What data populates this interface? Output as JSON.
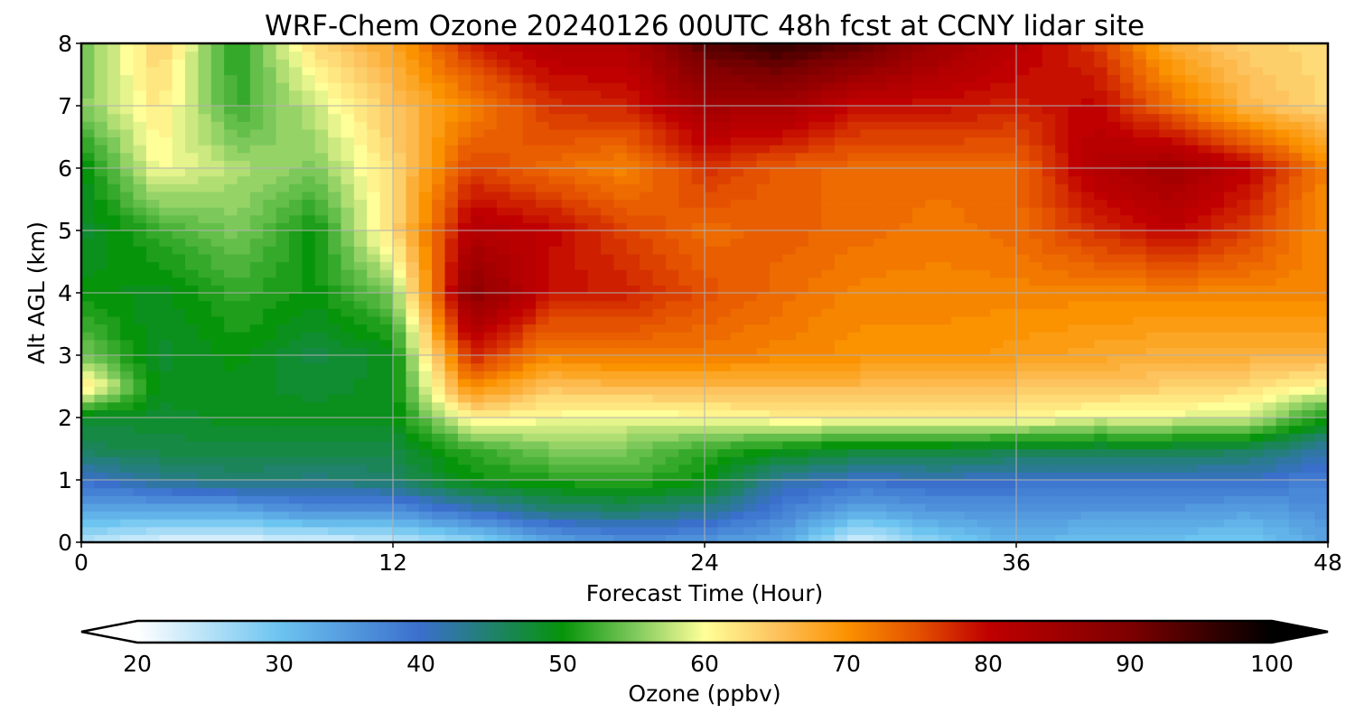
{
  "chart_data": {
    "type": "heatmap",
    "title": "WRF-Chem Ozone  20240126 00UTC 48h fcst at CCNY lidar site",
    "xlabel": "Forecast Time (Hour)",
    "ylabel": "Alt AGL (km)",
    "xlim": [
      0,
      48
    ],
    "ylim": [
      0,
      8
    ],
    "x_ticks": [
      "0",
      "12",
      "24",
      "36",
      "48"
    ],
    "y_ticks": [
      "0",
      "1",
      "2",
      "3",
      "4",
      "5",
      "6",
      "7",
      "8"
    ],
    "grid": true,
    "colorbar": {
      "label": "Ozone  (ppbv)",
      "range": [
        20,
        100
      ],
      "ticks": [
        "20",
        "30",
        "40",
        "50",
        "60",
        "70",
        "80",
        "90",
        "100"
      ],
      "extend": "both",
      "color_stops": [
        {
          "v": 20,
          "c": "#ffffff"
        },
        {
          "v": 30,
          "c": "#6cc4f0"
        },
        {
          "v": 40,
          "c": "#3a6fcc"
        },
        {
          "v": 50,
          "c": "#06940a"
        },
        {
          "v": 55,
          "c": "#7cc85a"
        },
        {
          "v": 60,
          "c": "#ffff99"
        },
        {
          "v": 65,
          "c": "#fdc35e"
        },
        {
          "v": 70,
          "c": "#fb9200"
        },
        {
          "v": 75,
          "c": "#e45100"
        },
        {
          "v": 80,
          "c": "#c00000"
        },
        {
          "v": 90,
          "c": "#7d0000"
        },
        {
          "v": 100,
          "c": "#000000"
        }
      ]
    },
    "x_hours": [
      0,
      3,
      6,
      9,
      12,
      15,
      18,
      21,
      24,
      27,
      30,
      33,
      36,
      39,
      42,
      45,
      48
    ],
    "z_km": [
      0,
      0.5,
      1,
      1.5,
      2,
      2.5,
      3,
      4,
      5,
      6,
      7,
      8
    ],
    "values_ppbv": [
      [
        25,
        22,
        22,
        22,
        24,
        27,
        33,
        36,
        35,
        33,
        22,
        28,
        32,
        30,
        30,
        29,
        34
      ],
      [
        33,
        33,
        33,
        36,
        36,
        40,
        44,
        45,
        43,
        38,
        33,
        35,
        36,
        35,
        35,
        34,
        36
      ],
      [
        40,
        43,
        45,
        44,
        45,
        50,
        51,
        52,
        50,
        42,
        40,
        41,
        40,
        40,
        40,
        40,
        38
      ],
      [
        46,
        47,
        47,
        47,
        47,
        52,
        55,
        55,
        52,
        50,
        48,
        48,
        47,
        47,
        47,
        46,
        42
      ],
      [
        48,
        48,
        49,
        49,
        49,
        61,
        60,
        59,
        60,
        61,
        61,
        61,
        61,
        59,
        59,
        58,
        50
      ],
      [
        63,
        49,
        49,
        48,
        49,
        71,
        65,
        66,
        66,
        66,
        66,
        65,
        65,
        65,
        64,
        63,
        60
      ],
      [
        55,
        48,
        50,
        47,
        49,
        78,
        71,
        72,
        72,
        71,
        70,
        70,
        69,
        68,
        67,
        67,
        67
      ],
      [
        50,
        49,
        52,
        50,
        55,
        88,
        79,
        78,
        75,
        73,
        71,
        71,
        71,
        71,
        71,
        71,
        71
      ],
      [
        48,
        52,
        55,
        50,
        63,
        82,
        80,
        76,
        73,
        74,
        73,
        72,
        73,
        77,
        80,
        76,
        70
      ],
      [
        49,
        60,
        57,
        55,
        63,
        76,
        73,
        71,
        77,
        74,
        73,
        73,
        73,
        82,
        85,
        80,
        71
      ],
      [
        55,
        62,
        52,
        58,
        65,
        71,
        77,
        78,
        84,
        84,
        79,
        79,
        78,
        80,
        73,
        66,
        63
      ],
      [
        54,
        64,
        51,
        63,
        68,
        78,
        82,
        82,
        93,
        96,
        92,
        85,
        81,
        77,
        67,
        64,
        63
      ]
    ]
  }
}
